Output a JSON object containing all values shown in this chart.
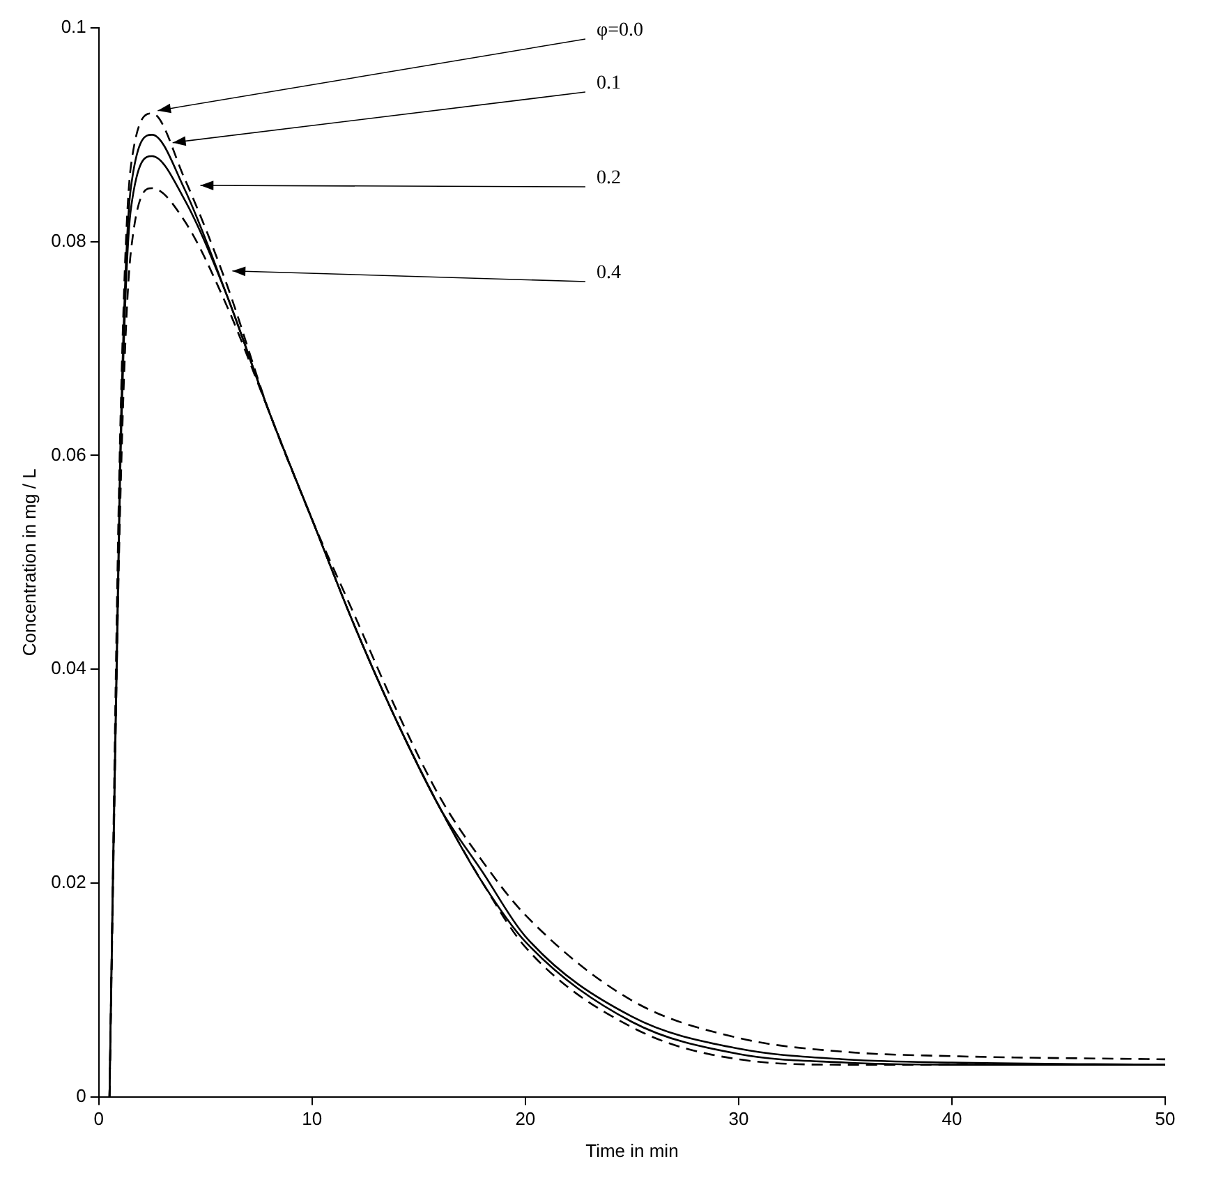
{
  "chart_data": {
    "type": "line",
    "xlabel": "Time in min",
    "ylabel": "Concentration in mg / L",
    "x": [
      0.5,
      1,
      1.5,
      2.5,
      4,
      6,
      8,
      10,
      12,
      14,
      16,
      18,
      20,
      25,
      30,
      35,
      40,
      50
    ],
    "series": [
      {
        "color": "#000000",
        "line_style": "dashed",
        "values": [
          0,
          0.062,
          0.087,
          0.092,
          0.086,
          0.076,
          0.064,
          0.054,
          0.044,
          0.035,
          0.027,
          0.02,
          0.014,
          0.0065,
          0.0035,
          0.003,
          0.003,
          0.003
        ]
      },
      {
        "color": "#000000",
        "line_style": "solid",
        "values": [
          0,
          0.06,
          0.085,
          0.09,
          0.085,
          0.075,
          0.064,
          0.054,
          0.044,
          0.035,
          0.027,
          0.02,
          0.0145,
          0.007,
          0.004,
          0.0032,
          0.003,
          0.003
        ]
      },
      {
        "color": "#000000",
        "line_style": "solid",
        "values": [
          0,
          0.058,
          0.083,
          0.088,
          0.084,
          0.075,
          0.064,
          0.054,
          0.044,
          0.035,
          0.027,
          0.021,
          0.015,
          0.0075,
          0.0045,
          0.0035,
          0.0032,
          0.003
        ]
      },
      {
        "color": "#000000",
        "line_style": "dashed",
        "values": [
          0,
          0.055,
          0.079,
          0.085,
          0.082,
          0.074,
          0.064,
          0.054,
          0.045,
          0.036,
          0.028,
          0.022,
          0.017,
          0.009,
          0.0055,
          0.0042,
          0.0038,
          0.0035
        ]
      }
    ],
    "annotations": [
      {
        "text": "φ=0.0",
        "x": 2.5,
        "y": 0.092
      },
      {
        "text": "0.1",
        "x": 3.2,
        "y": 0.089
      },
      {
        "text": "0.2",
        "x": 4.5,
        "y": 0.085
      },
      {
        "text": "0.4",
        "x": 6,
        "y": 0.077
      }
    ],
    "xlim": [
      0,
      50
    ],
    "xticks": [
      0,
      10,
      20,
      30,
      40,
      50
    ],
    "ylim": [
      0,
      0.1
    ],
    "yticks": [
      0,
      0.02,
      0.04,
      0.06,
      0.08,
      0.1
    ],
    "grid": false,
    "legend": false,
    "marker": "none"
  }
}
